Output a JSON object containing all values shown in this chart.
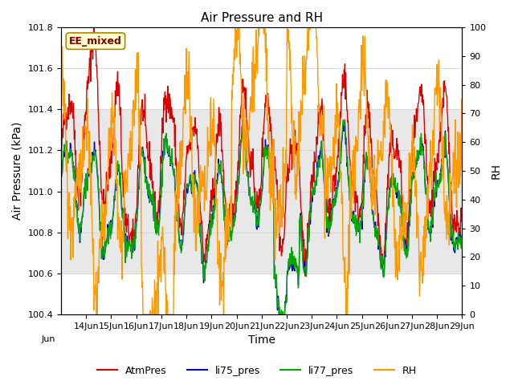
{
  "title": "Air Pressure and RH",
  "xlabel": "Time",
  "ylabel_left": "Air Pressure (kPa)",
  "ylabel_right": "RH",
  "annotation": "EE_mixed",
  "ylim_left": [
    100.4,
    101.8
  ],
  "ylim_right": [
    0,
    100
  ],
  "yticks_left": [
    100.4,
    100.6,
    100.8,
    101.0,
    101.2,
    101.4,
    101.6,
    101.8
  ],
  "yticks_right": [
    0,
    10,
    20,
    30,
    40,
    50,
    60,
    70,
    80,
    90,
    100
  ],
  "colors": {
    "AtmPres": "#dd0000",
    "li75_pres": "#0000cc",
    "li77_pres": "#00aa00",
    "RH": "#ff9900"
  },
  "linewidths": {
    "AtmPres": 1.0,
    "li75_pres": 1.0,
    "li77_pres": 1.0,
    "RH": 1.0
  },
  "bg_band_color": "#e8e8e8",
  "bg_band_ylim": [
    100.6,
    101.4
  ],
  "tick_label_fontsize": 8,
  "axis_label_fontsize": 10,
  "title_fontsize": 11,
  "legend_fontsize": 9,
  "annotation_fontsize": 9,
  "annotation_color": "#800000",
  "annotation_bg": "#ffffcc",
  "annotation_border": "#aa8800"
}
